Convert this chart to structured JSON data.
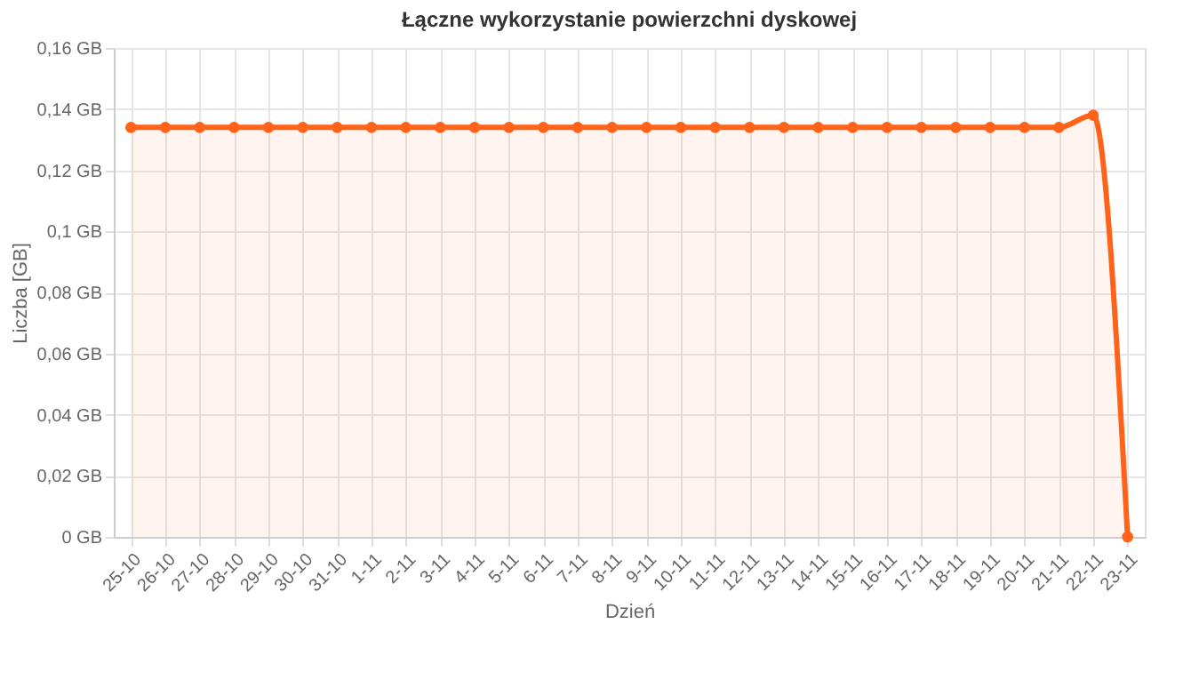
{
  "chart_data": {
    "type": "area",
    "title": "Łączne wykorzystanie powierzchni dyskowej",
    "xlabel": "Dzień",
    "ylabel": "Liczba [GB]",
    "categories": [
      "25-10",
      "26-10",
      "27-10",
      "28-10",
      "29-10",
      "30-10",
      "31-10",
      "1-11",
      "2-11",
      "3-11",
      "4-11",
      "5-11",
      "6-11",
      "7-11",
      "8-11",
      "9-11",
      "10-11",
      "11-11",
      "12-11",
      "13-11",
      "14-11",
      "15-11",
      "16-11",
      "17-11",
      "18-11",
      "19-11",
      "20-11",
      "21-11",
      "22-11",
      "23-11"
    ],
    "series": [
      {
        "color": "#ff6319",
        "values": [
          0.134,
          0.134,
          0.134,
          0.134,
          0.134,
          0.134,
          0.134,
          0.134,
          0.134,
          0.134,
          0.134,
          0.134,
          0.134,
          0.134,
          0.134,
          0.134,
          0.134,
          0.134,
          0.134,
          0.134,
          0.134,
          0.134,
          0.134,
          0.134,
          0.134,
          0.134,
          0.134,
          0.134,
          0.138,
          0
        ]
      }
    ],
    "ylim": [
      0,
      0.16
    ],
    "yticks": [
      {
        "value": 0,
        "label": "0 GB"
      },
      {
        "value": 0.02,
        "label": "0,02 GB"
      },
      {
        "value": 0.04,
        "label": "0,04 GB"
      },
      {
        "value": 0.06,
        "label": "0,06 GB"
      },
      {
        "value": 0.08,
        "label": "0,08 GB"
      },
      {
        "value": 0.1,
        "label": "0,1 GB"
      },
      {
        "value": 0.12,
        "label": "0,12 GB"
      },
      {
        "value": 0.14,
        "label": "0,14 GB"
      },
      {
        "value": 0.16,
        "label": "0,16 GB"
      }
    ],
    "grid": true,
    "marker": "circle",
    "line_style": "solid"
  }
}
